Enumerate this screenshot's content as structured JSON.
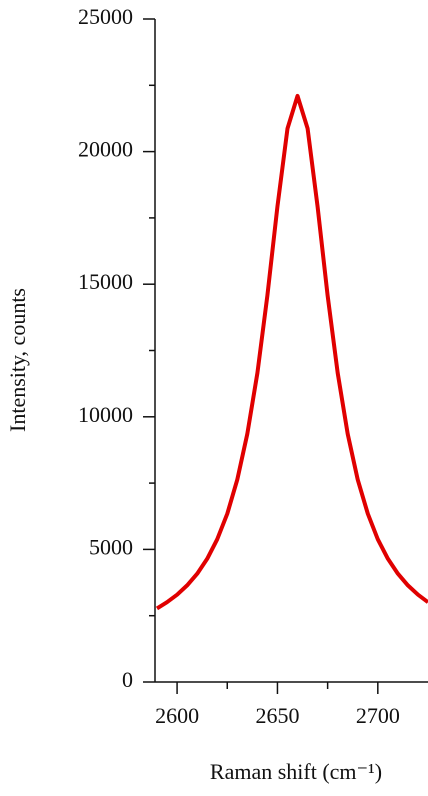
{
  "chart_data": {
    "type": "line",
    "x_label": "Raman shift (cm⁻¹)",
    "y_label": "Intensity, counts",
    "x": [
      2590,
      2595,
      2600,
      2605,
      2610,
      2615,
      2620,
      2625,
      2630,
      2635,
      2640,
      2645,
      2650,
      2655,
      2660,
      2665,
      2670,
      2675,
      2680,
      2685,
      2690,
      2695,
      2700,
      2705,
      2710,
      2715,
      2720,
      2725
    ],
    "values": [
      2777,
      3008,
      3290,
      3641,
      4083,
      4647,
      5380,
      6345,
      7631,
      9356,
      11650,
      14576,
      17920,
      20871,
      22100,
      20871,
      17920,
      14576,
      11650,
      9356,
      7631,
      6345,
      5380,
      4647,
      4083,
      3641,
      3290,
      3008
    ],
    "color": "#e00000",
    "xlim": [
      2589,
      2725
    ],
    "xticks": [
      2600,
      2650,
      2700
    ],
    "xminorticks": [
      2625,
      2675
    ],
    "ylim": [
      0,
      25000
    ],
    "yticks": [
      0,
      5000,
      10000,
      15000,
      20000,
      25000
    ],
    "yminorticks": [
      2500,
      7500,
      12500,
      17500,
      22500
    ],
    "grid": false
  }
}
